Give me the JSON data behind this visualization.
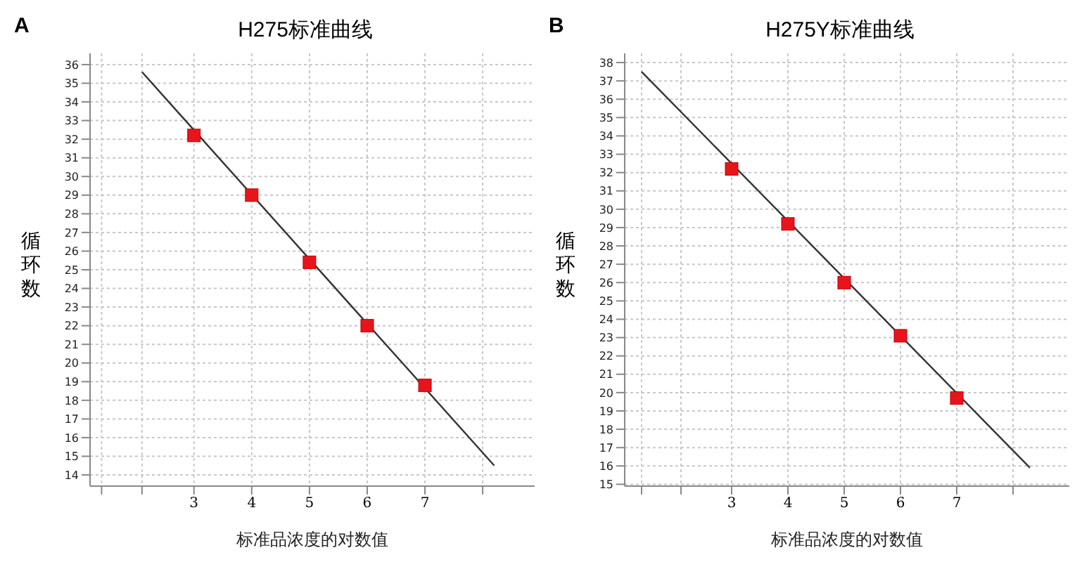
{
  "chart_data": [
    {
      "type": "scatter",
      "title": "H275标准曲线",
      "xlabel": "标准品浓度的对数值",
      "ylabel": "循环数",
      "annotations": [
        "A"
      ],
      "xlim": [
        1.2,
        8.9
      ],
      "xticks": [
        {
          "value": 1.4,
          "label": null
        },
        {
          "value": 2.1,
          "label": null
        },
        3,
        4,
        5,
        6,
        7,
        {
          "value": 8,
          "label": null
        }
      ],
      "ylim": [
        13.4,
        36.6
      ],
      "yticks": [
        14,
        15,
        16,
        17,
        18,
        19,
        20,
        21,
        22,
        23,
        24,
        25,
        26,
        27,
        28,
        29,
        30,
        31,
        32,
        33,
        34,
        35,
        36
      ],
      "grid": true,
      "legend": false,
      "marker": "square",
      "series": [
        {
          "type": "line",
          "color": "#333333",
          "marker": "none",
          "x": [
            2.1,
            8.2
          ],
          "values": [
            35.6,
            14.5
          ]
        },
        {
          "color": "#e8141c",
          "x": [
            3,
            4,
            5,
            6,
            7
          ],
          "values": [
            32.2,
            29.0,
            25.4,
            22.0,
            18.8
          ]
        }
      ]
    },
    {
      "type": "scatter",
      "title": "H275Y标准曲线",
      "xlabel": "标准品浓度的对数值",
      "ylabel": "循环数",
      "annotations": [
        "B"
      ],
      "xlim": [
        1.1,
        9.0
      ],
      "xticks": [
        {
          "value": 1.4,
          "label": null
        },
        {
          "value": 2.1,
          "label": null
        },
        3,
        4,
        5,
        6,
        7,
        {
          "value": 8,
          "label": null
        }
      ],
      "ylim": [
        14.9,
        38.5
      ],
      "yticks": [
        15,
        16,
        17,
        18,
        19,
        20,
        21,
        22,
        23,
        24,
        25,
        26,
        27,
        28,
        29,
        30,
        31,
        32,
        33,
        34,
        35,
        36,
        37,
        38
      ],
      "grid": true,
      "legend": false,
      "marker": "square",
      "series": [
        {
          "type": "line",
          "color": "#333333",
          "marker": "none",
          "x": [
            1.4,
            8.3
          ],
          "values": [
            37.5,
            15.9
          ]
        },
        {
          "color": "#e8141c",
          "x": [
            3,
            4,
            5,
            6,
            7
          ],
          "values": [
            32.2,
            29.2,
            26.0,
            23.1,
            19.7
          ]
        }
      ]
    }
  ]
}
